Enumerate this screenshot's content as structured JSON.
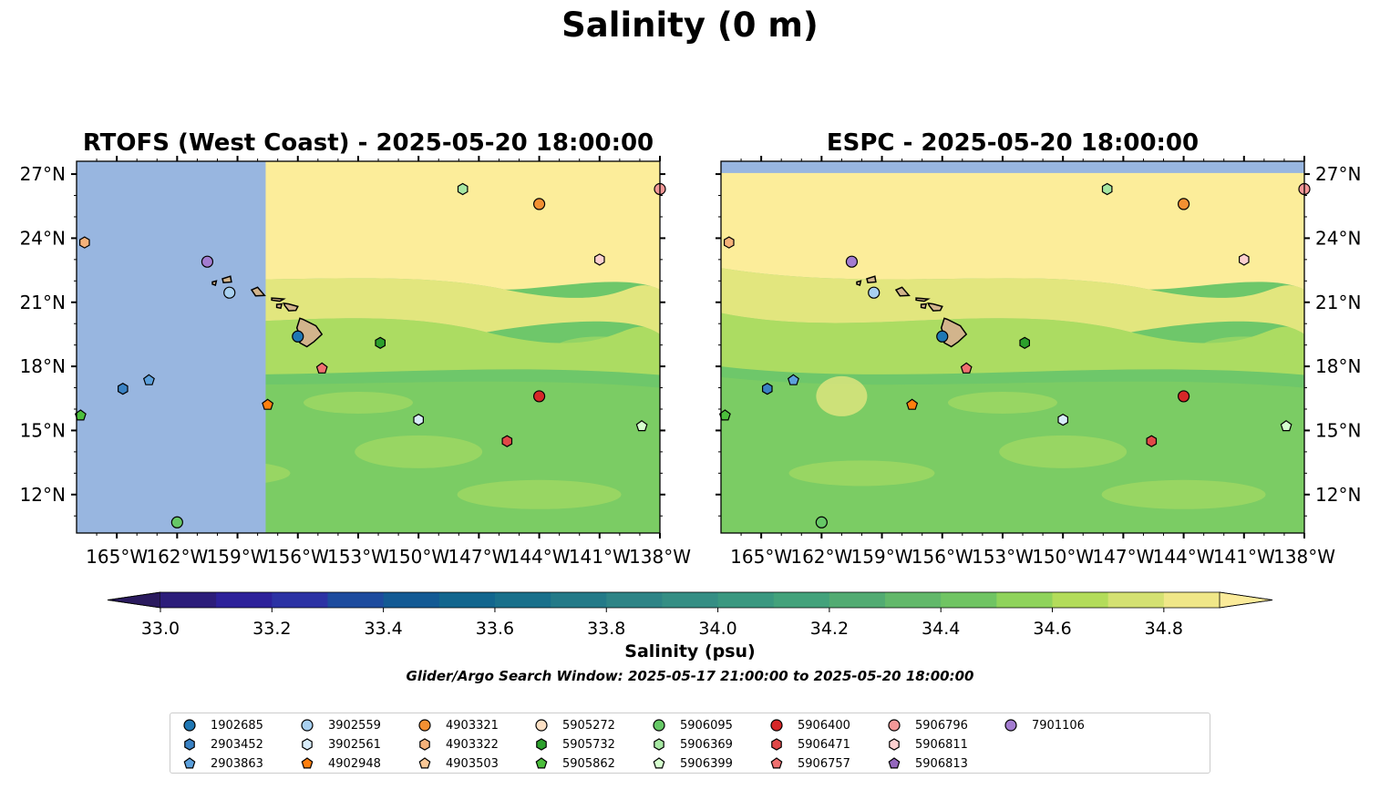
{
  "figure": {
    "title": "Salinity (0 m)",
    "search_window": "Glider/Argo Search Window: 2025-05-17 21:00:00 to 2025-05-20 18:00:00"
  },
  "panels": [
    {
      "id": "left",
      "title": "RTOFS (West Coast) - 2025-05-20 18:00:00",
      "lat_labels_side": "left",
      "model_domain_lon_min": -157.6
    },
    {
      "id": "right",
      "title": "ESPC - 2025-05-20 18:00:00",
      "lat_labels_side": "right",
      "model_domain_lat_max": 27.05
    }
  ],
  "map_extent": {
    "lon_min": -167,
    "lon_max": -138,
    "lat_min": 10.2,
    "lat_max": 27.6
  },
  "axes": {
    "lon_ticks": [
      -165,
      -162,
      -159,
      -156,
      -153,
      -150,
      -147,
      -144,
      -141,
      -138
    ],
    "lon_tick_labels": [
      "165°W",
      "162°W",
      "159°W",
      "156°W",
      "153°W",
      "150°W",
      "147°W",
      "144°W",
      "141°W",
      "138°W"
    ],
    "lat_ticks": [
      12,
      15,
      18,
      21,
      24,
      27
    ],
    "lat_tick_labels": [
      "12°N",
      "15°N",
      "18°N",
      "21°N",
      "24°N",
      "27°N"
    ]
  },
  "colorbar": {
    "label": "Salinity (psu)",
    "vmin": 33.0,
    "vmax": 34.9,
    "step": 0.1,
    "extend": "both",
    "ticks": [
      33.0,
      33.2,
      33.4,
      33.6,
      33.8,
      34.0,
      34.2,
      34.4,
      34.6,
      34.8
    ],
    "tick_labels": [
      "33.0",
      "33.2",
      "33.4",
      "33.6",
      "33.8",
      "34.0",
      "34.2",
      "34.4",
      "34.6",
      "34.8"
    ],
    "under_color": "#2a1a5e",
    "over_color": "#fbeb9a",
    "colors": [
      "#2c1d7a",
      "#2d219a",
      "#2c32a4",
      "#1d4b9e",
      "#135a94",
      "#12668e",
      "#19708b",
      "#247a88",
      "#2e8486",
      "#358e84",
      "#3a9880",
      "#43a27b",
      "#52ab72",
      "#62b86a",
      "#70c463",
      "#8fd35b",
      "#b3dc5a",
      "#d4e172",
      "#f0e788"
    ]
  },
  "map_colors": {
    "nodata": "#98b6e0",
    "land": "#d2b48c",
    "sal_high": "#fced9a",
    "sal_mid_high": "#e2e67e",
    "sal_mid": "#acdc62",
    "sal_mid_low": "#86d05e",
    "sal_low": "#6ec76a"
  },
  "chart_data": {
    "type": "scatter",
    "title": "Salinity (0 m)",
    "xlabel": "",
    "ylabel": "",
    "xlim": [
      -167,
      -138
    ],
    "ylim": [
      10.2,
      27.6
    ],
    "series": [
      {
        "name": "1902685",
        "color": "#1f77b4",
        "marker": "circle",
        "points": {
          "left": [
            [
              -156.0,
              19.4
            ]
          ],
          "right": [
            [
              -156.0,
              19.4
            ]
          ]
        }
      },
      {
        "name": "2903452",
        "color": "#3a82c4",
        "marker": "hexagon",
        "points": {
          "left": [
            [
              -164.7,
              16.95
            ]
          ],
          "right": [
            [
              -164.7,
              16.95
            ]
          ]
        }
      },
      {
        "name": "2903863",
        "color": "#5ca0dc",
        "marker": "pentagon",
        "points": {
          "left": [
            [
              -163.4,
              17.35
            ]
          ],
          "right": [
            [
              -163.4,
              17.35
            ]
          ]
        }
      },
      {
        "name": "3902559",
        "color": "#a8d0f0",
        "marker": "circle",
        "points": {
          "left": [
            [
              -159.4,
              21.45
            ]
          ],
          "right": [
            [
              -159.4,
              21.45
            ]
          ]
        }
      },
      {
        "name": "3902561",
        "color": "#d8ecfa",
        "marker": "hexagon",
        "points": {
          "left": [
            [
              -150.0,
              15.5
            ]
          ],
          "right": [
            [
              -150.0,
              15.5
            ]
          ]
        }
      },
      {
        "name": "4902948",
        "color": "#ff7f0e",
        "marker": "pentagon",
        "points": {
          "left": [
            [
              -157.5,
              16.2
            ]
          ],
          "right": [
            [
              -157.5,
              16.2
            ]
          ]
        }
      },
      {
        "name": "4903321",
        "color": "#f39032",
        "marker": "circle",
        "points": {
          "left": [
            [
              -144.0,
              25.6
            ]
          ],
          "right": [
            [
              -144.0,
              25.6
            ]
          ]
        }
      },
      {
        "name": "4903322",
        "color": "#f5b27a",
        "marker": "hexagon",
        "points": {
          "left": [
            [
              -166.6,
              23.8
            ]
          ],
          "right": [
            [
              -166.6,
              23.8
            ]
          ]
        }
      },
      {
        "name": "4903503",
        "color": "#fcc896",
        "marker": "pentagon",
        "points": {
          "left": [],
          "right": []
        }
      },
      {
        "name": "5905272",
        "color": "#fde0c4",
        "marker": "circle",
        "points": {
          "left": [],
          "right": []
        }
      },
      {
        "name": "5905732",
        "color": "#2ca02c",
        "marker": "hexagon",
        "points": {
          "left": [
            [
              -151.9,
              19.1
            ]
          ],
          "right": [
            [
              -151.9,
              19.1
            ]
          ]
        }
      },
      {
        "name": "5905862",
        "color": "#4cbf3c",
        "marker": "pentagon",
        "points": {
          "left": [
            [
              -166.8,
              15.7
            ]
          ],
          "right": [
            [
              -166.8,
              15.7
            ]
          ]
        }
      },
      {
        "name": "5906095",
        "color": "#66c866",
        "marker": "circle",
        "points": {
          "left": [
            [
              -162.0,
              10.7
            ]
          ],
          "right": [
            [
              -162.0,
              10.7
            ]
          ]
        }
      },
      {
        "name": "5906369",
        "color": "#a6e7a2",
        "marker": "hexagon",
        "points": {
          "left": [
            [
              -147.8,
              26.3
            ]
          ],
          "right": [
            [
              -147.8,
              26.3
            ]
          ]
        }
      },
      {
        "name": "5906399",
        "color": "#d6ffce",
        "marker": "pentagon",
        "points": {
          "left": [
            [
              -138.9,
              15.2
            ]
          ],
          "right": [
            [
              -138.9,
              15.2
            ]
          ]
        }
      },
      {
        "name": "5906400",
        "color": "#d62728",
        "marker": "circle",
        "points": {
          "left": [
            [
              -144.0,
              16.6
            ]
          ],
          "right": [
            [
              -144.0,
              16.6
            ]
          ]
        }
      },
      {
        "name": "5906471",
        "color": "#e04848",
        "marker": "hexagon",
        "points": {
          "left": [
            [
              -145.6,
              14.5
            ]
          ],
          "right": [
            [
              -145.6,
              14.5
            ]
          ]
        }
      },
      {
        "name": "5906757",
        "color": "#f07070",
        "marker": "pentagon",
        "points": {
          "left": [
            [
              -154.8,
              17.9
            ]
          ],
          "right": [
            [
              -154.8,
              17.9
            ]
          ]
        }
      },
      {
        "name": "5906796",
        "color": "#f49898",
        "marker": "circle",
        "points": {
          "left": [
            [
              -138.0,
              26.3
            ]
          ],
          "right": [
            [
              -138.0,
              26.3
            ]
          ]
        }
      },
      {
        "name": "5906811",
        "color": "#fcd0d0",
        "marker": "hexagon",
        "points": {
          "left": [
            [
              -141.0,
              23.0
            ]
          ],
          "right": [
            [
              -141.0,
              23.0
            ]
          ]
        }
      },
      {
        "name": "5906813",
        "color": "#9467bd",
        "marker": "pentagon",
        "points": {
          "left": [],
          "right": []
        }
      },
      {
        "name": "7901106",
        "color": "#a37cd0",
        "marker": "circle",
        "points": {
          "left": [
            [
              -160.5,
              22.9
            ]
          ],
          "right": [
            [
              -160.5,
              22.9
            ]
          ]
        }
      }
    ]
  }
}
